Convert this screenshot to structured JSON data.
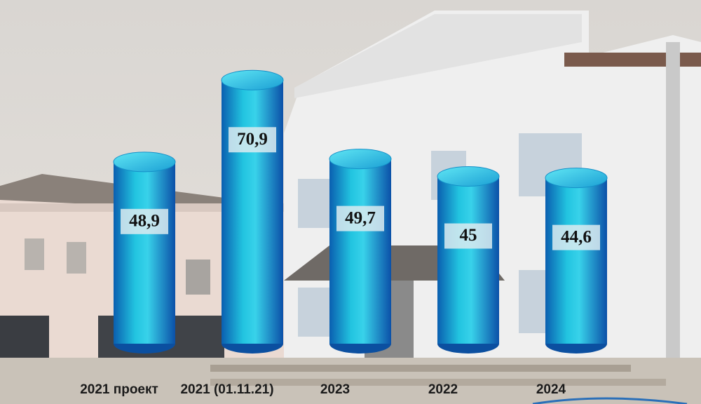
{
  "chart_data": {
    "type": "bar",
    "categories": [
      "2021 проект",
      "2021 (01.11.21)",
      "2023",
      "2022",
      "2024"
    ],
    "values": [
      48.9,
      70.9,
      49.7,
      45,
      44.6
    ],
    "value_labels": [
      "48,9",
      "70,9",
      "49,7",
      "45",
      "44,6"
    ],
    "color": "#1aa3d6"
  }
}
